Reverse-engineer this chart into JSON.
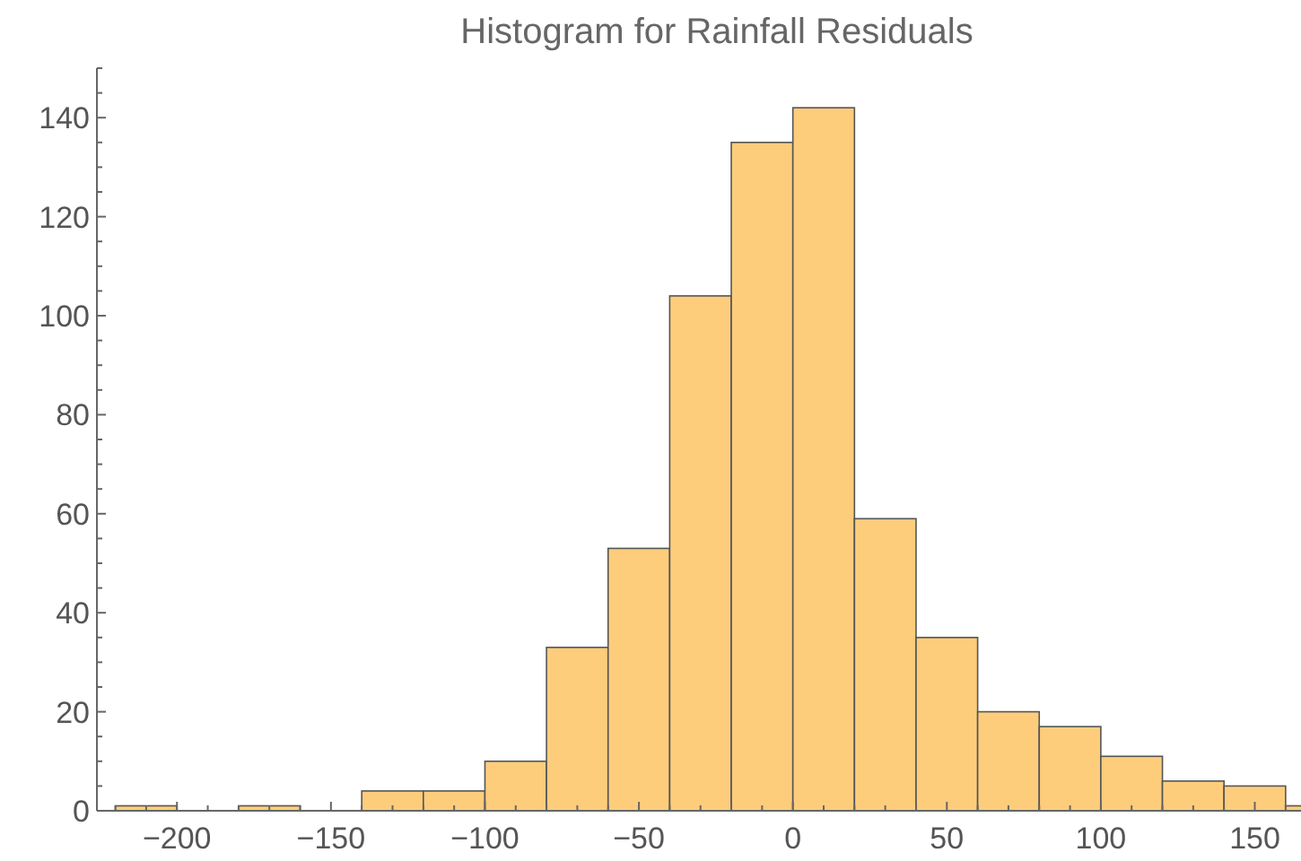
{
  "chart_data": {
    "type": "histogram",
    "title": "Histogram for Rainfall Residuals",
    "bins": [
      -220,
      -200,
      -180,
      -160,
      -140,
      -120,
      -100,
      -80,
      -60,
      -40,
      -20,
      0,
      20,
      40,
      60,
      80,
      100,
      120,
      140,
      160,
      180
    ],
    "values": [
      1,
      0,
      1,
      0,
      4,
      4,
      10,
      33,
      53,
      104,
      135,
      142,
      59,
      35,
      20,
      17,
      11,
      6,
      5,
      1
    ],
    "color": "#fdcd7c",
    "xlim": [
      -226,
      165
    ],
    "ylim": [
      0,
      150
    ],
    "xticks": [
      {
        "value": -220,
        "label": null
      },
      {
        "value": -210,
        "label": null
      },
      {
        "value": -200,
        "label": "−200"
      },
      {
        "value": -190,
        "label": null
      },
      {
        "value": -180,
        "label": null
      },
      {
        "value": -170,
        "label": null
      },
      {
        "value": -160,
        "label": null
      },
      {
        "value": -150,
        "label": "−150"
      },
      {
        "value": -140,
        "label": null
      },
      {
        "value": -130,
        "label": null
      },
      {
        "value": -120,
        "label": null
      },
      {
        "value": -110,
        "label": null
      },
      {
        "value": -100,
        "label": "−100"
      },
      {
        "value": -90,
        "label": null
      },
      {
        "value": -80,
        "label": null
      },
      {
        "value": -70,
        "label": null
      },
      {
        "value": -60,
        "label": null
      },
      {
        "value": -50,
        "label": "−50"
      },
      {
        "value": -40,
        "label": null
      },
      {
        "value": -30,
        "label": null
      },
      {
        "value": -20,
        "label": null
      },
      {
        "value": -10,
        "label": null
      },
      0,
      {
        "value": 10,
        "label": null
      },
      {
        "value": 20,
        "label": null
      },
      {
        "value": 30,
        "label": null
      },
      {
        "value": 40,
        "label": null
      },
      50,
      {
        "value": 60,
        "label": null
      },
      {
        "value": 70,
        "label": null
      },
      {
        "value": 80,
        "label": null
      },
      {
        "value": 90,
        "label": null
      },
      100,
      {
        "value": 110,
        "label": null
      },
      {
        "value": 120,
        "label": null
      },
      {
        "value": 130,
        "label": null
      },
      {
        "value": 140,
        "label": null
      },
      150,
      {
        "value": 160,
        "label": null
      }
    ],
    "yticks": [
      0,
      {
        "value": 5,
        "label": null
      },
      {
        "value": 10,
        "label": null
      },
      {
        "value": 15,
        "label": null
      },
      20,
      {
        "value": 25,
        "label": null
      },
      {
        "value": 30,
        "label": null
      },
      {
        "value": 35,
        "label": null
      },
      40,
      {
        "value": 45,
        "label": null
      },
      {
        "value": 50,
        "label": null
      },
      {
        "value": 55,
        "label": null
      },
      60,
      {
        "value": 65,
        "label": null
      },
      {
        "value": 70,
        "label": null
      },
      {
        "value": 75,
        "label": null
      },
      80,
      {
        "value": 85,
        "label": null
      },
      {
        "value": 90,
        "label": null
      },
      {
        "value": 95,
        "label": null
      },
      100,
      {
        "value": 105,
        "label": null
      },
      {
        "value": 110,
        "label": null
      },
      {
        "value": 115,
        "label": null
      },
      120,
      {
        "value": 125,
        "label": null
      },
      {
        "value": 130,
        "label": null
      },
      {
        "value": 135,
        "label": null
      },
      140,
      {
        "value": 145,
        "label": null
      },
      {
        "value": 150,
        "label": null
      }
    ]
  }
}
